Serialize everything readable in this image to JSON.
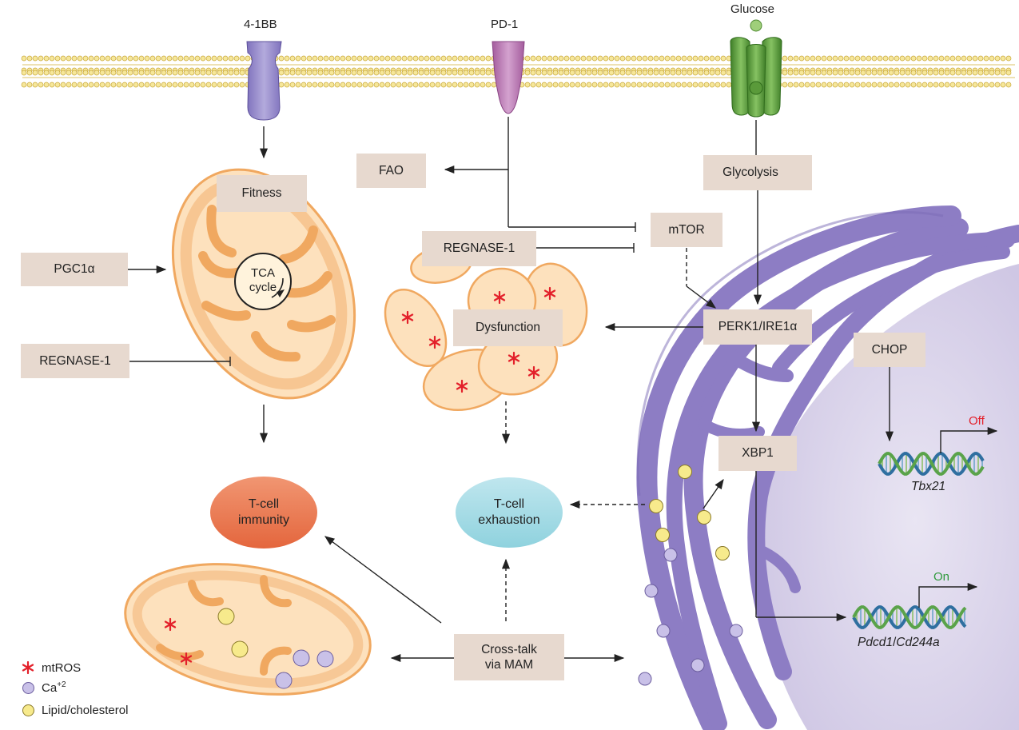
{
  "receptors": {
    "r1": "4-1BB",
    "r2": "PD-1",
    "r3": "Glucose"
  },
  "boxes": {
    "fitness": "Fitness",
    "pgc1a": "PGC1α",
    "regnase_left": "REGNASE-1",
    "fao": "FAO",
    "regnase_center": "REGNASE-1",
    "mtor": "mTOR",
    "glycolysis": "Glycolysis",
    "dysfunction": "Dysfunction",
    "perk": "PERK1/IRE1α",
    "chop": "CHOP",
    "xbp1": "XBP1",
    "crosstalk_line1": "Cross-talk",
    "crosstalk_line2": "via MAM"
  },
  "tca": {
    "line1": "TCA",
    "line2": "cycle"
  },
  "outcomes": {
    "immunity_line1": "T-cell",
    "immunity_line2": "immunity",
    "exhaustion_line1": "T-cell",
    "exhaustion_line2": "exhaustion"
  },
  "genes": {
    "off_label": "Off",
    "on_label": "On",
    "tbx21": "Tbx21",
    "pdcd1": "Pdcd1",
    "slash": "/",
    "cd244a": "Cd244a"
  },
  "legend": {
    "mtros": "mtROS",
    "ca": "Ca",
    "ca_sup": "+2",
    "lipid": "Lipid/cholesterol"
  },
  "colors": {
    "box": "#e7d9cf",
    "mito_fill": "#fde1bd",
    "mito_edge": "#f0a860",
    "er": "#8d7dc4",
    "nucleus": "#dcd6ec",
    "immunity": "#ed7a52",
    "exhaustion": "#a9dde7",
    "mtros": "#e3202a",
    "calcium": "#c9c1e8",
    "lipid": "#f7ea8c",
    "receptor_41bb": "#9c90cf",
    "receptor_pd1": "#b877b1",
    "glut": "#6aa647",
    "off": "#e3202a",
    "on": "#2f9a3c",
    "glyco_arrow": "#7a64ad"
  }
}
